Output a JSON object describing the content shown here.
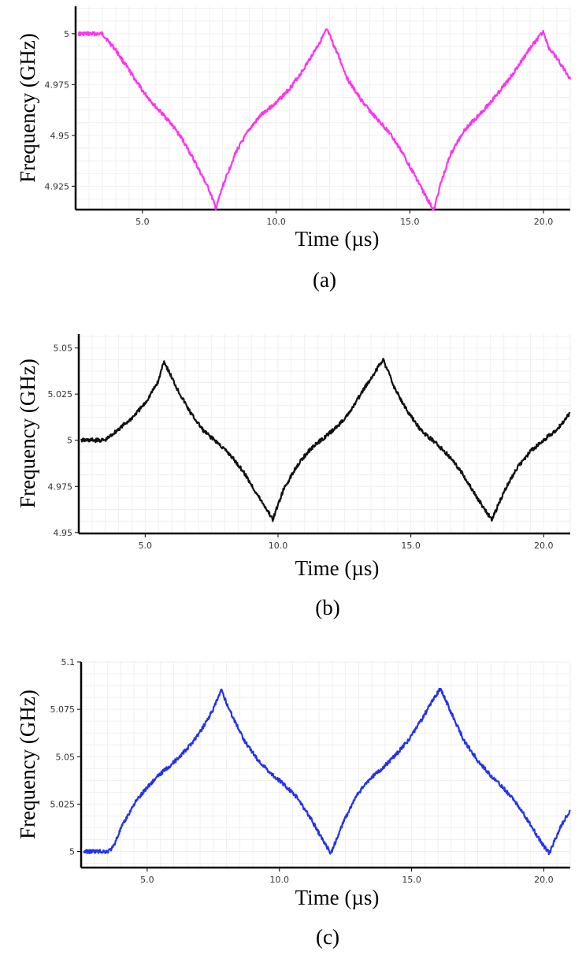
{
  "chart_data": [
    {
      "panel": "(a)",
      "type": "line",
      "xlabel": "Time (µs)",
      "ylabel": "Frequency (GHz)",
      "color": "#ff33ee",
      "xlim": [
        2.5,
        21.0
      ],
      "ylim": [
        4.9135,
        5.0135
      ],
      "xticks": [
        5.0,
        10.0,
        15.0,
        20.0
      ],
      "xtick_labels": [
        "5.0",
        "10.0",
        "15.0",
        "20.0"
      ],
      "yticks": [
        4.925,
        4.95,
        4.975,
        5.0
      ],
      "ytick_labels": [
        "4.925",
        "4.95",
        "4.975",
        "5"
      ],
      "grid": true,
      "series": [
        {
          "x": [
            2.6,
            3.0,
            3.5,
            4.0,
            4.5,
            5.0,
            5.5,
            6.0,
            6.5,
            7.0,
            7.5,
            7.75,
            8.0,
            8.5,
            9.0,
            9.5,
            10.0,
            10.5,
            11.0,
            11.5,
            11.9,
            12.3,
            12.7,
            13.2,
            13.7,
            14.2,
            14.7,
            15.2,
            15.6,
            15.9,
            16.1,
            16.5,
            17.0,
            17.5,
            18.0,
            18.5,
            19.0,
            19.5,
            20.0,
            20.2,
            20.6,
            21.0
          ],
          "y": [
            5.0,
            5.0,
            5.0,
            4.992,
            4.982,
            4.972,
            4.964,
            4.957,
            4.948,
            4.936,
            4.923,
            4.914,
            4.925,
            4.942,
            4.953,
            4.961,
            4.966,
            4.973,
            4.982,
            4.993,
            5.002,
            4.99,
            4.977,
            4.967,
            4.959,
            4.952,
            4.942,
            4.93,
            4.92,
            4.913,
            4.924,
            4.94,
            4.952,
            4.959,
            4.966,
            4.974,
            4.983,
            4.993,
            5.001,
            4.993,
            4.986,
            4.978
          ]
        }
      ]
    },
    {
      "panel": "(b)",
      "type": "line",
      "xlabel": "Time (µs)",
      "ylabel": "Frequency (GHz)",
      "color": "#111111",
      "xlim": [
        2.5,
        21.0
      ],
      "ylim": [
        4.9495,
        5.0575
      ],
      "xticks": [
        5.0,
        10.0,
        15.0,
        20.0
      ],
      "xtick_labels": [
        "5.0",
        "10.0",
        "15.0",
        "20.0"
      ],
      "yticks": [
        4.95,
        4.975,
        5.0,
        5.025,
        5.05
      ],
      "ytick_labels": [
        "4.95",
        "4.975",
        "5",
        "5.025",
        "5.05"
      ],
      "grid": true,
      "series": [
        {
          "x": [
            2.6,
            3.0,
            3.5,
            4.0,
            4.5,
            5.0,
            5.5,
            5.7,
            6.2,
            6.7,
            7.2,
            7.7,
            8.2,
            8.7,
            9.2,
            9.6,
            9.8,
            10.2,
            10.7,
            11.2,
            11.7,
            12.2,
            12.7,
            13.2,
            13.7,
            13.95,
            14.4,
            14.9,
            15.4,
            15.9,
            16.4,
            16.9,
            17.4,
            17.8,
            18.05,
            18.5,
            19.0,
            19.5,
            20.0,
            20.5,
            21.0
          ],
          "y": [
            5.0,
            5.0,
            5.0,
            5.006,
            5.012,
            5.02,
            5.032,
            5.043,
            5.028,
            5.015,
            5.005,
            4.999,
            4.992,
            4.983,
            4.971,
            4.962,
            4.957,
            4.973,
            4.986,
            4.995,
            5.001,
            5.007,
            5.015,
            5.027,
            5.038,
            5.044,
            5.028,
            5.015,
            5.005,
            4.999,
            4.992,
            4.983,
            4.971,
            4.962,
            4.957,
            4.972,
            4.985,
            4.994,
            5.0,
            5.006,
            5.015
          ]
        }
      ]
    },
    {
      "panel": "(c)",
      "type": "line",
      "xlabel": "Time (µs)",
      "ylabel": "Frequency (GHz)",
      "color": "#2233ee",
      "xlim": [
        2.5,
        21.0
      ],
      "ylim": [
        4.9915,
        5.1
      ],
      "xticks": [
        5.0,
        10.0,
        15.0,
        20.0
      ],
      "xtick_labels": [
        "5.0",
        "10.0",
        "15.0",
        "20.0"
      ],
      "yticks": [
        5.0,
        5.025,
        5.05,
        5.075,
        5.1
      ],
      "ytick_labels": [
        "5",
        "5.025",
        "5.05",
        "5.075",
        "5.1"
      ],
      "grid": true,
      "series": [
        {
          "x": [
            2.6,
            3.0,
            3.5,
            3.7,
            4.0,
            4.5,
            5.0,
            5.5,
            6.0,
            6.5,
            7.0,
            7.5,
            7.8,
            8.2,
            8.7,
            9.2,
            9.7,
            10.2,
            10.7,
            11.2,
            11.6,
            11.95,
            12.4,
            12.9,
            13.4,
            13.9,
            14.4,
            14.9,
            15.4,
            15.8,
            16.1,
            16.5,
            17.0,
            17.5,
            18.0,
            18.5,
            19.0,
            19.5,
            19.9,
            20.2,
            20.6,
            21.0
          ],
          "y": [
            5.0,
            5.0,
            5.0,
            5.002,
            5.012,
            5.025,
            5.034,
            5.041,
            5.047,
            5.054,
            5.063,
            5.075,
            5.085,
            5.072,
            5.058,
            5.048,
            5.041,
            5.035,
            5.028,
            5.017,
            5.007,
            4.999,
            5.015,
            5.029,
            5.038,
            5.044,
            5.051,
            5.059,
            5.07,
            5.08,
            5.086,
            5.073,
            5.058,
            5.048,
            5.04,
            5.033,
            5.025,
            5.014,
            5.005,
            4.999,
            5.012,
            5.022
          ]
        }
      ]
    }
  ]
}
